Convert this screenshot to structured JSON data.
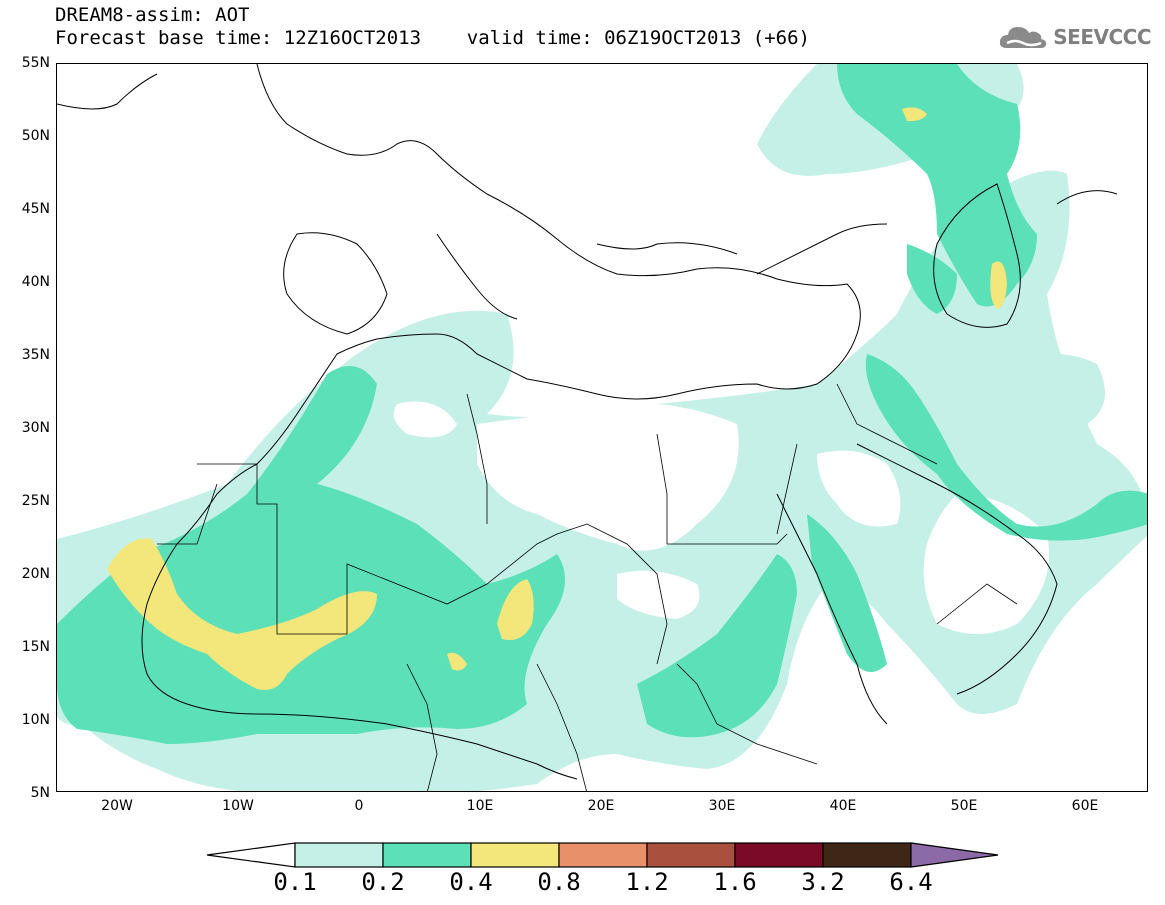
{
  "title": {
    "line1": "DREAM8-assim: AOT",
    "line2": "Forecast base time: 12Z16OCT2013    valid time: 06Z19OCT2013 (+66)"
  },
  "logo": {
    "text": "SEEVCCC",
    "icon": "cloud-icon"
  },
  "map": {
    "lon_range": [
      -25,
      65
    ],
    "lat_range": [
      5,
      55
    ],
    "y_tick_labels": [
      "55N",
      "50N",
      "45N",
      "40N",
      "35N",
      "30N",
      "25N",
      "20N",
      "15N",
      "10N",
      "5N"
    ],
    "x_tick_labels": [
      "20W",
      "10W",
      "0",
      "10E",
      "20E",
      "30E",
      "40E",
      "50E",
      "60E"
    ]
  },
  "colorbar": {
    "labels": [
      "0.1",
      "0.2",
      "0.4",
      "0.8",
      "1.2",
      "1.6",
      "3.2",
      "6.4"
    ],
    "colors": [
      "#ffffff",
      "#c5f0e8",
      "#5ce0b8",
      "#f3e67a",
      "#e8906a",
      "#a9503e",
      "#7a0a26",
      "#3e2716",
      "#8c6aa8"
    ]
  }
}
